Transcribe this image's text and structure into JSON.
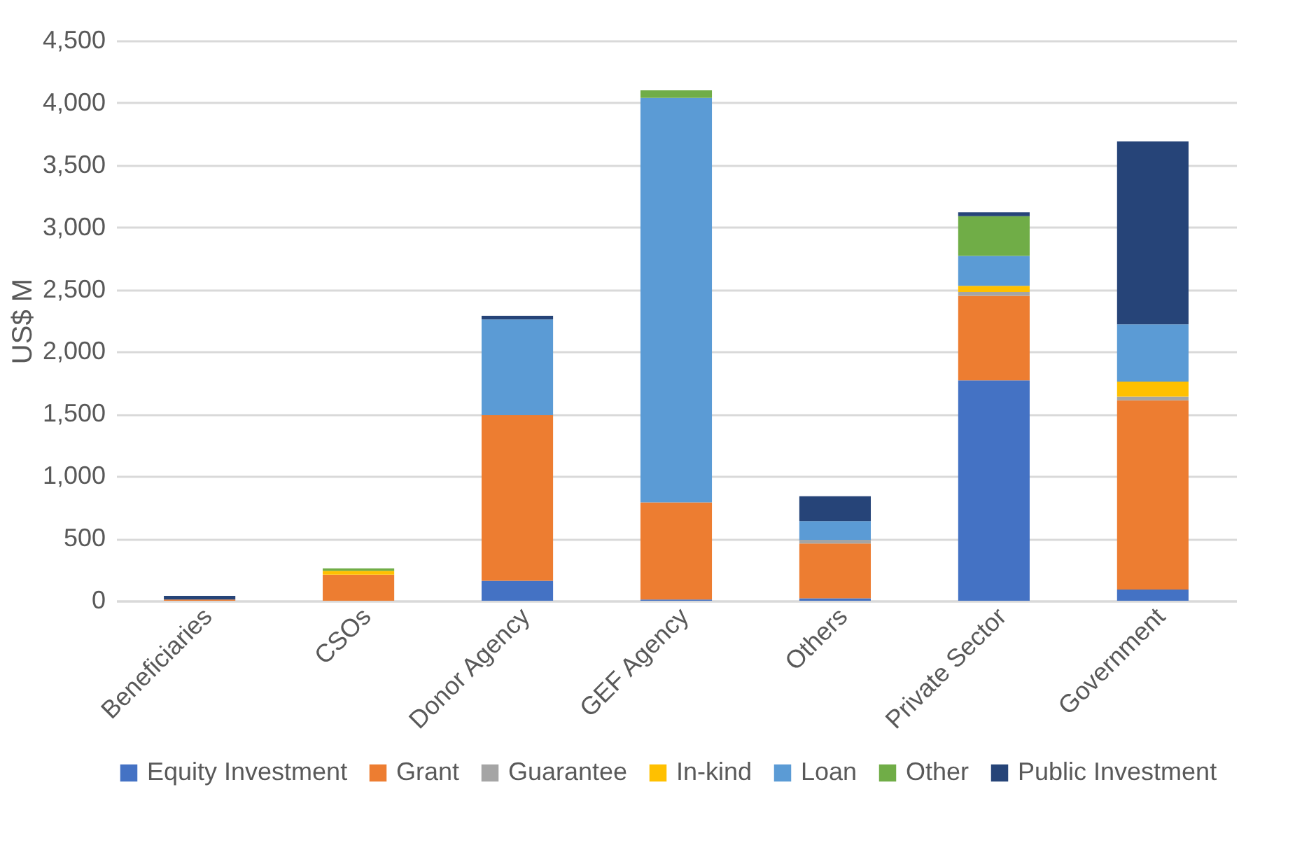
{
  "chart_data": {
    "type": "bar",
    "stacked": true,
    "ylabel": "US$ M",
    "categories": [
      "Beneficiaries",
      "CSOs",
      "Donor Agency",
      "GEF Agency",
      "Others",
      "Private Sector",
      "Government"
    ],
    "series": [
      {
        "name": "Equity Investment",
        "color": "#4472c4",
        "values": [
          null,
          null,
          160,
          10,
          20,
          1770,
          90
        ]
      },
      {
        "name": "Grant",
        "color": "#ed7d31",
        "values": [
          10,
          210,
          1330,
          780,
          440,
          680,
          1520
        ]
      },
      {
        "name": "Guarantee",
        "color": "#a5a5a5",
        "values": [
          null,
          null,
          null,
          null,
          30,
          30,
          30
        ]
      },
      {
        "name": "In-kind",
        "color": "#ffc000",
        "values": [
          null,
          30,
          null,
          null,
          null,
          50,
          120
        ]
      },
      {
        "name": "Loan",
        "color": "#5b9bd5",
        "values": [
          null,
          null,
          770,
          3250,
          150,
          240,
          460
        ]
      },
      {
        "name": "Other",
        "color": "#70ad47",
        "values": [
          null,
          20,
          null,
          60,
          null,
          320,
          null
        ]
      },
      {
        "name": "Public Investment",
        "color": "#264478",
        "values": [
          30,
          null,
          30,
          null,
          200,
          30,
          1470
        ]
      }
    ],
    "ylim": [
      0,
      4500
    ],
    "yticks": [
      0,
      {
        "value": 500,
        "label": "500"
      },
      {
        "value": 1000,
        "label": "1,000"
      },
      {
        "value": 1500,
        "label": "1,500"
      },
      {
        "value": 2000,
        "label": "2,000"
      },
      {
        "value": 2500,
        "label": "2,500"
      },
      {
        "value": 3000,
        "label": "3,000"
      },
      {
        "value": 3500,
        "label": "3,500"
      },
      {
        "value": 4000,
        "label": "4,000"
      },
      {
        "value": 4500,
        "label": "4,500"
      }
    ],
    "grid": "y",
    "legend": "bottom"
  }
}
